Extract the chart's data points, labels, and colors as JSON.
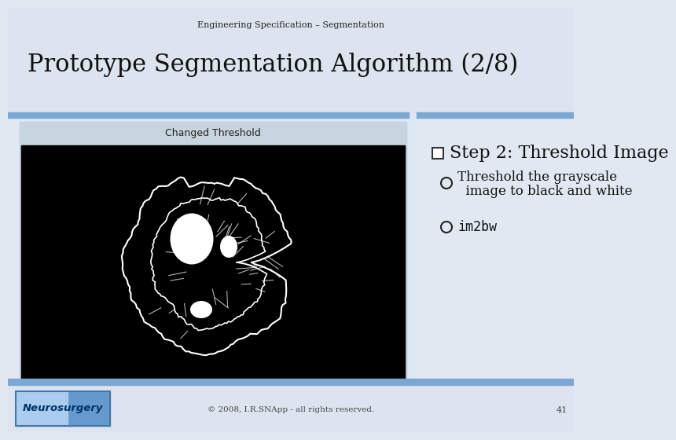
{
  "title_small": "Engineering Specification – Segmentation",
  "title_large": "Prototype Segmentation Algorithm (2/8)",
  "slide_bg": "#e2e8f2",
  "header_bg": "#dde4ef",
  "content_bg": "#dde8f3",
  "blue_bar_color": "#7ba7d4",
  "step_title": "Step 2: Threshold Image",
  "bullet1_line1": "Threshold the grayscale",
  "bullet1_line2": "  image to black and white",
  "bullet2": "im2bw",
  "image_label": "Changed Threshold",
  "image_frame_bg": "#c0ccd8",
  "image_label_bg": "#c8d4de",
  "footer_text": "© 2008, I.R.SNApp - all rights reserved.",
  "page_num": "41",
  "neurosurgery_text": "Neurosurgery",
  "footer_bar_color": "#7ba7d4",
  "footer_bg": "#dde4ef"
}
